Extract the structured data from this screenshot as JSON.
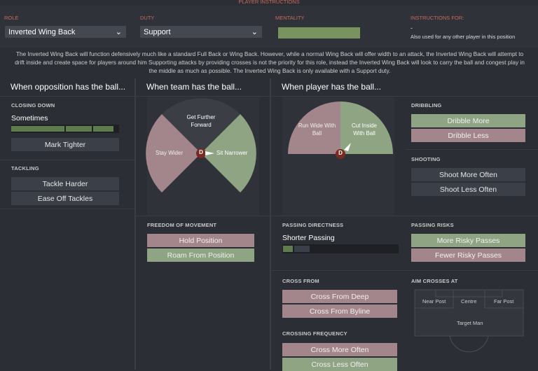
{
  "header": {
    "title": "PLAYER INSTRUCTIONS",
    "role_label": "ROLE",
    "role": "Inverted Wing Back",
    "duty_label": "DUTY",
    "duty": "Support",
    "mentality_label": "MENTALITY",
    "instructions_for_label": "INSTRUCTIONS FOR:",
    "instructions_for": "-",
    "instructions_note": "Also used for any other player in this position"
  },
  "description": "The Inverted Wing Back will function defensively much like a standard Full Back or Wing Back. However, while a normal Wing Back will offer width to an attack, the Inverted Wing Back will attempt to drift inside and create space for players around him Supporting attacks by providing crosses is not the priority for this role, instead the Inverted Wing Back will look to carry the ball and congest play in the middle as much as possible. The Inverted Wing Back is only available with a Support duty.",
  "columns": [
    "When opposition has the ball...",
    "When team has the ball...",
    "When player has the ball..."
  ],
  "opposition": {
    "closing_down_label": "CLOSING DOWN",
    "closing_down": "Sometimes",
    "mark_tighter": "Mark Tighter",
    "tackling_label": "TACKLING",
    "tackle_harder": "Tackle Harder",
    "ease_off": "Ease Off Tackles"
  },
  "team": {
    "forward": "Get Further Forward",
    "wider": "Stay Wider",
    "narrower": "Sit Narrower",
    "player": "D",
    "freedom_label": "FREEDOM OF MOVEMENT",
    "hold": "Hold Position",
    "roam": "Roam From Position"
  },
  "player": {
    "run_wide": "Run Wide With Ball",
    "cut_inside": "Cut Inside With Ball",
    "player": "D",
    "passing_directness_label": "PASSING DIRECTNESS",
    "passing_directness": "Shorter Passing",
    "cross_from_label": "CROSS FROM",
    "cross_deep": "Cross From Deep",
    "cross_byline": "Cross From Byline",
    "crossing_frequency_label": "CROSSING FREQUENCY",
    "cross_more": "Cross More Often",
    "cross_less": "Cross Less Often"
  },
  "right": {
    "dribbling_label": "DRIBBLING",
    "dribble_more": "Dribble More",
    "dribble_less": "Dribble Less",
    "shooting_label": "SHOOTING",
    "shoot_more": "Shoot More Often",
    "shoot_less": "Shoot Less Often",
    "passing_risks_label": "PASSING RISKS",
    "more_risky": "More Risky Passes",
    "fewer_risky": "Fewer Risky Passes",
    "aim_label": "AIM CROSSES AT",
    "near_post": "Near Post",
    "centre": "Centre",
    "far_post": "Far Post",
    "target_man": "Target Man"
  }
}
